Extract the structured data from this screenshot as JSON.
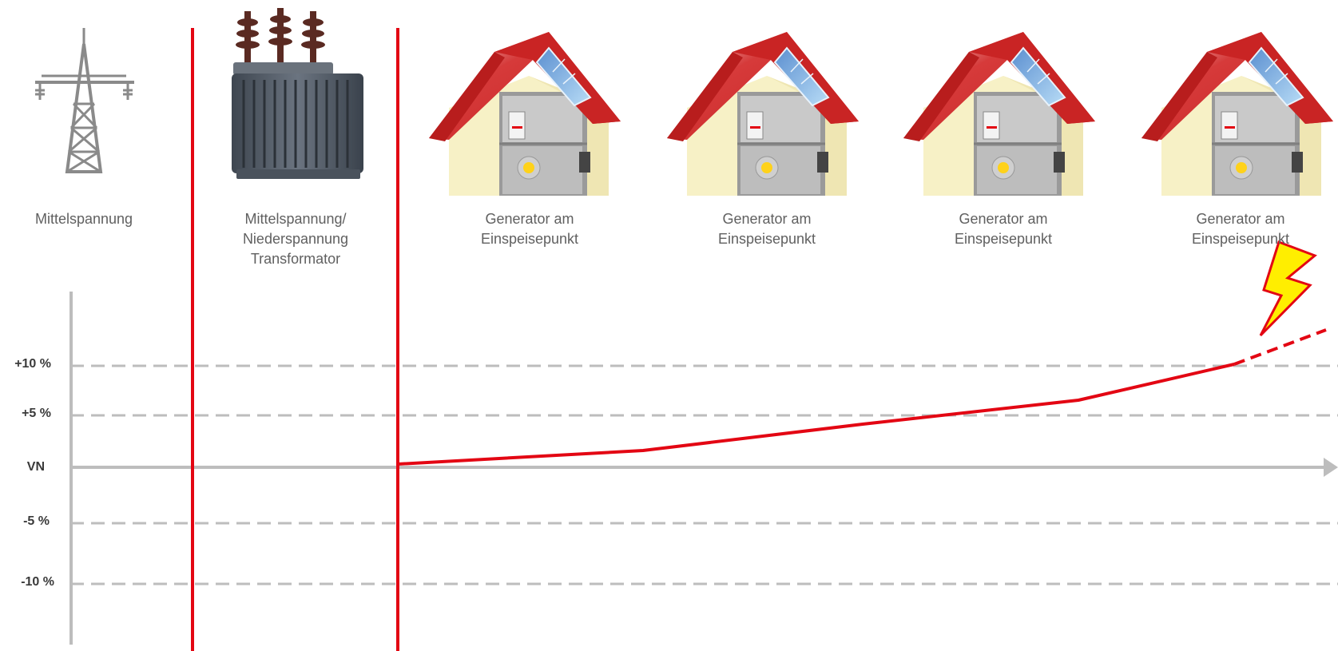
{
  "captions": {
    "pylon": "Mittelspannung",
    "transformer": "Mittelspannung/\nNiederspannung\nTransformator",
    "houses": [
      "Generator am\nEinspeisepunkt",
      "Generator am\nEinspeisepunkt",
      "Generator am\nEinspeisepunkt",
      "Generator am\nEinspeisepunkt"
    ]
  },
  "axis": {
    "labels": [
      "+10 %",
      "+5 %",
      "VN",
      "-5 %",
      "-10 %"
    ]
  },
  "colors": {
    "voltage_line": "#e30613",
    "separator": "#e30613",
    "grid": "#bdbdbd",
    "roof": "#d12f2f",
    "wall": "#f7f1c6",
    "panel": "#7fb3e6",
    "lightning_fill": "#ffee00",
    "lightning_stroke": "#e30613"
  },
  "icons": [
    "power-pylon-icon",
    "transformer-icon",
    "pv-house-icon",
    "lightning-bolt-icon"
  ]
}
